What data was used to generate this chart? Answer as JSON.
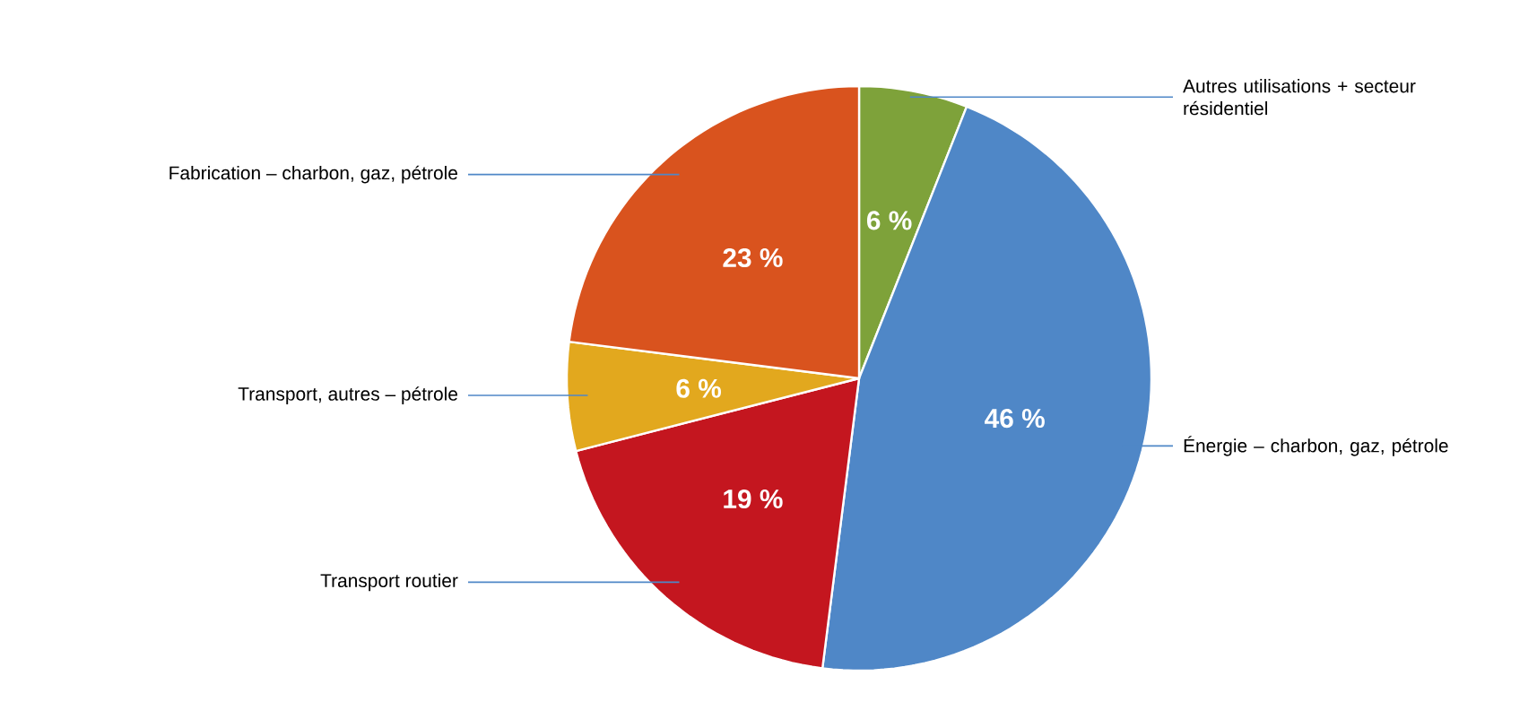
{
  "chart_data": {
    "type": "pie",
    "categories": [
      "Autres utilisations + secteur résidentiel",
      "Énergie – charbon, gaz, pétrole",
      "Transport routier",
      "Transport, autres – pétrole",
      "Fabrication – charbon, gaz, pétrole"
    ],
    "values": [
      6,
      46,
      19,
      6,
      23
    ],
    "colors": [
      "#7ea23a",
      "#4f87c7",
      "#c4161f",
      "#e2a81e",
      "#d9531e"
    ],
    "value_labels": [
      "6 %",
      "46 %",
      "19 %",
      "6 %",
      "23 %"
    ]
  }
}
